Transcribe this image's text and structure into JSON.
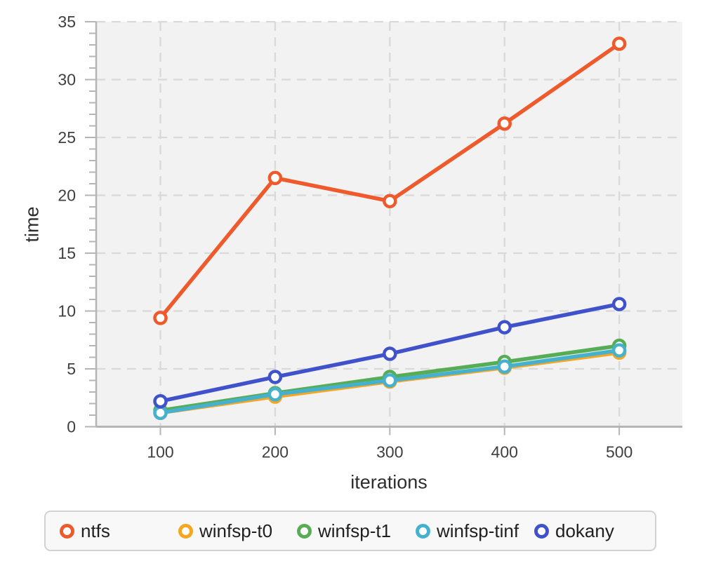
{
  "chart_data": {
    "type": "line",
    "title": "",
    "xlabel": "iterations",
    "ylabel": "time",
    "x": [
      100,
      200,
      300,
      400,
      500
    ],
    "xlim": [
      44,
      555
    ],
    "ylim": [
      0,
      35
    ],
    "xticks": [
      100,
      200,
      300,
      400,
      500
    ],
    "yticks_major": [
      0,
      5,
      10,
      15,
      20,
      25,
      30,
      35
    ],
    "ytick_minor_step": 1,
    "grid": true,
    "grid_style": "dashed",
    "legend_position": "bottom",
    "marker": "open-circle",
    "series": [
      {
        "name": "ntfs",
        "color": "#ee5a2b",
        "values": [
          9.4,
          21.5,
          19.5,
          26.2,
          33.1
        ]
      },
      {
        "name": "winfsp-t0",
        "color": "#f5a623",
        "values": [
          1.2,
          2.6,
          3.9,
          5.1,
          6.4
        ]
      },
      {
        "name": "winfsp-t1",
        "color": "#56ad56",
        "values": [
          1.4,
          2.9,
          4.3,
          5.6,
          7.0
        ]
      },
      {
        "name": "winfsp-tinf",
        "color": "#46b1cf",
        "values": [
          1.2,
          2.8,
          4.0,
          5.2,
          6.6
        ]
      },
      {
        "name": "dokany",
        "color": "#4052c9",
        "values": [
          2.2,
          4.3,
          6.3,
          8.6,
          10.6
        ]
      }
    ],
    "colors": {
      "plot_background": "#f2f2f2",
      "gridline": "#d9d9d9",
      "axis_line": "#b5b5b5",
      "tick_label": "#3f3f3f",
      "axis_label": "#2e2e2e",
      "legend_background": "#f8f8f8",
      "legend_border": "#d2d2d2",
      "legend_text": "#1f1f1f"
    }
  }
}
